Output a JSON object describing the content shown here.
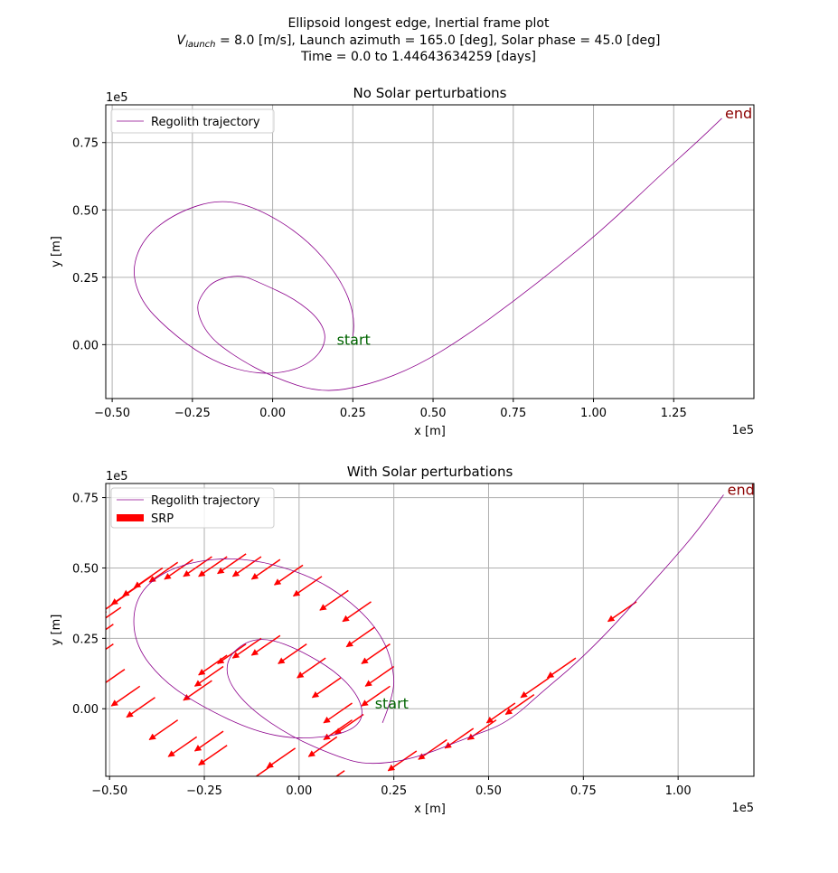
{
  "figure": {
    "title_line1": "Ellipsoid longest edge, Inertial frame plot",
    "title_line2_vlaunch_symbol": "V",
    "title_line2_vlaunch_sub": "launch",
    "title_line2_rest": " = 8.0 [m/s], Launch azimuth = 165.0 [deg], Solar phase = 45.0 [deg]",
    "title_line3": "Time = 0.0 to 1.44643634259 [days]"
  },
  "colors": {
    "trajectory": "#8b008b",
    "srp": "#ff0000",
    "start": "#006400",
    "end": "#8b0000",
    "grid": "#b0b0b0"
  },
  "chart_data": [
    {
      "type": "line",
      "title": "No Solar perturbations",
      "xlabel": "x [m]",
      "ylabel": "y [m]",
      "x_scale_label": "1e5",
      "y_scale_label": "1e5",
      "xlim": [
        -0.52,
        1.5
      ],
      "ylim": [
        -0.2,
        0.89
      ],
      "xticks": [
        -0.5,
        -0.25,
        0.0,
        0.25,
        0.5,
        0.75,
        1.0,
        1.25
      ],
      "xtick_labels": [
        "−0.50",
        "−0.25",
        "0.00",
        "0.25",
        "0.50",
        "0.75",
        "1.00",
        "1.25"
      ],
      "yticks": [
        0.0,
        0.25,
        0.5,
        0.75
      ],
      "ytick_labels": [
        "0.00",
        "0.25",
        "0.50",
        "0.75"
      ],
      "grid": true,
      "legend_position": "top-left",
      "series": [
        {
          "name": "Regolith trajectory",
          "points": [
            [
              0.25,
              0.03
            ],
            [
              0.26,
              0.1
            ],
            [
              0.21,
              0.25
            ],
            [
              0.1,
              0.4
            ],
            [
              -0.05,
              0.51
            ],
            [
              -0.17,
              0.54
            ],
            [
              -0.3,
              0.49
            ],
            [
              -0.4,
              0.4
            ],
            [
              -0.44,
              0.28
            ],
            [
              -0.41,
              0.16
            ],
            [
              -0.33,
              0.06
            ],
            [
              -0.22,
              -0.04
            ],
            [
              -0.1,
              -0.1
            ],
            [
              0.02,
              -0.11
            ],
            [
              0.12,
              -0.07
            ],
            [
              0.17,
              0.01
            ],
            [
              0.15,
              0.09
            ],
            [
              0.07,
              0.17
            ],
            [
              -0.04,
              0.23
            ],
            [
              -0.1,
              0.26
            ],
            [
              -0.18,
              0.24
            ],
            [
              -0.22,
              0.19
            ],
            [
              -0.24,
              0.13
            ],
            [
              -0.2,
              0.03
            ],
            [
              -0.11,
              -0.05
            ],
            [
              0.0,
              -0.12
            ],
            [
              0.15,
              -0.18
            ],
            [
              0.3,
              -0.15
            ],
            [
              0.45,
              -0.08
            ],
            [
              0.6,
              0.03
            ],
            [
              0.75,
              0.16
            ],
            [
              0.9,
              0.3
            ],
            [
              1.05,
              0.45
            ],
            [
              1.2,
              0.62
            ],
            [
              1.33,
              0.76
            ],
            [
              1.4,
              0.84
            ]
          ]
        }
      ],
      "annotations": [
        {
          "text": "start",
          "x": 0.2,
          "y": 0.0
        },
        {
          "text": "end",
          "x": 1.41,
          "y": 0.84
        }
      ]
    },
    {
      "type": "line",
      "title": "With Solar perturbations",
      "xlabel": "x [m]",
      "ylabel": "y [m]",
      "x_scale_label": "1e5",
      "y_scale_label": "1e5",
      "xlim": [
        -0.51,
        1.2
      ],
      "ylim": [
        -0.24,
        0.8
      ],
      "xticks": [
        -0.5,
        -0.25,
        0.0,
        0.25,
        0.5,
        0.75,
        1.0
      ],
      "xtick_labels": [
        "−0.50",
        "−0.25",
        "0.00",
        "0.25",
        "0.50",
        "0.75",
        "1.00"
      ],
      "yticks": [
        0.0,
        0.25,
        0.5,
        0.75
      ],
      "ytick_labels": [
        "0.00",
        "0.25",
        "0.50",
        "0.75"
      ],
      "grid": true,
      "legend_position": "top-left",
      "series": [
        {
          "name": "Regolith trajectory",
          "points": [
            [
              0.22,
              -0.05
            ],
            [
              0.25,
              0.05
            ],
            [
              0.25,
              0.14
            ],
            [
              0.22,
              0.26
            ],
            [
              0.14,
              0.38
            ],
            [
              0.02,
              0.48
            ],
            [
              -0.15,
              0.54
            ],
            [
              -0.3,
              0.52
            ],
            [
              -0.4,
              0.45
            ],
            [
              -0.44,
              0.35
            ],
            [
              -0.43,
              0.22
            ],
            [
              -0.36,
              0.1
            ],
            [
              -0.26,
              0.01
            ],
            [
              -0.12,
              -0.08
            ],
            [
              0.0,
              -0.11
            ],
            [
              0.12,
              -0.09
            ],
            [
              0.17,
              -0.04
            ],
            [
              0.16,
              0.04
            ],
            [
              0.1,
              0.13
            ],
            [
              0.0,
              0.21
            ],
            [
              -0.08,
              0.25
            ],
            [
              -0.14,
              0.24
            ],
            [
              -0.19,
              0.18
            ],
            [
              -0.19,
              0.1
            ],
            [
              -0.13,
              0.0
            ],
            [
              -0.02,
              -0.1
            ],
            [
              0.1,
              -0.17
            ],
            [
              0.18,
              -0.2
            ],
            [
              0.3,
              -0.18
            ],
            [
              0.45,
              -0.1
            ],
            [
              0.55,
              -0.05
            ],
            [
              0.65,
              0.07
            ],
            [
              0.73,
              0.16
            ],
            [
              0.82,
              0.28
            ],
            [
              0.9,
              0.4
            ],
            [
              0.98,
              0.52
            ],
            [
              1.05,
              0.63
            ],
            [
              1.12,
              0.76
            ]
          ]
        }
      ],
      "srp_legend_label": "SRP",
      "srp_vector": {
        "dx": -0.075,
        "dy": -0.07
      },
      "srp_anchors": [
        [
          0.89,
          0.38
        ],
        [
          0.73,
          0.18
        ],
        [
          0.66,
          0.11
        ],
        [
          0.62,
          0.05
        ],
        [
          0.57,
          0.02
        ],
        [
          0.52,
          -0.04
        ],
        [
          0.46,
          -0.07
        ],
        [
          0.39,
          -0.11
        ],
        [
          0.31,
          -0.15
        ],
        [
          0.21,
          -0.24
        ],
        [
          0.12,
          -0.22
        ],
        [
          0.24,
          0.08
        ],
        [
          0.25,
          0.15
        ],
        [
          0.24,
          0.23
        ],
        [
          0.2,
          0.29
        ],
        [
          0.19,
          0.38
        ],
        [
          0.13,
          0.42
        ],
        [
          0.06,
          0.47
        ],
        [
          0.01,
          0.51
        ],
        [
          -0.05,
          0.53
        ],
        [
          -0.1,
          0.54
        ],
        [
          -0.14,
          0.55
        ],
        [
          -0.19,
          0.54
        ],
        [
          -0.23,
          0.54
        ],
        [
          -0.28,
          0.53
        ],
        [
          -0.32,
          0.52
        ],
        [
          -0.36,
          0.5
        ],
        [
          -0.39,
          0.47
        ],
        [
          -0.42,
          0.44
        ],
        [
          -0.45,
          0.41
        ],
        [
          -0.47,
          0.36
        ],
        [
          -0.49,
          0.3
        ],
        [
          -0.49,
          0.23
        ],
        [
          -0.46,
          0.14
        ],
        [
          -0.42,
          0.08
        ],
        [
          -0.38,
          0.04
        ],
        [
          -0.32,
          -0.04
        ],
        [
          -0.27,
          -0.1
        ],
        [
          -0.2,
          -0.08
        ],
        [
          -0.19,
          -0.13
        ],
        [
          -0.07,
          -0.2
        ],
        [
          -0.01,
          -0.14
        ],
        [
          0.1,
          -0.1
        ],
        [
          0.14,
          -0.04
        ],
        [
          0.17,
          -0.02
        ],
        [
          0.14,
          0.02
        ],
        [
          0.11,
          0.11
        ],
        [
          0.07,
          0.18
        ],
        [
          0.02,
          0.23
        ],
        [
          -0.05,
          0.26
        ],
        [
          -0.1,
          0.25
        ],
        [
          -0.14,
          0.23
        ],
        [
          -0.19,
          0.19
        ],
        [
          -0.2,
          0.15
        ],
        [
          -0.23,
          0.1
        ]
      ],
      "annotations": [
        {
          "text": "start",
          "x": 0.2,
          "y": 0.0
        },
        {
          "text": "end",
          "x": 1.13,
          "y": 0.76
        }
      ]
    }
  ]
}
